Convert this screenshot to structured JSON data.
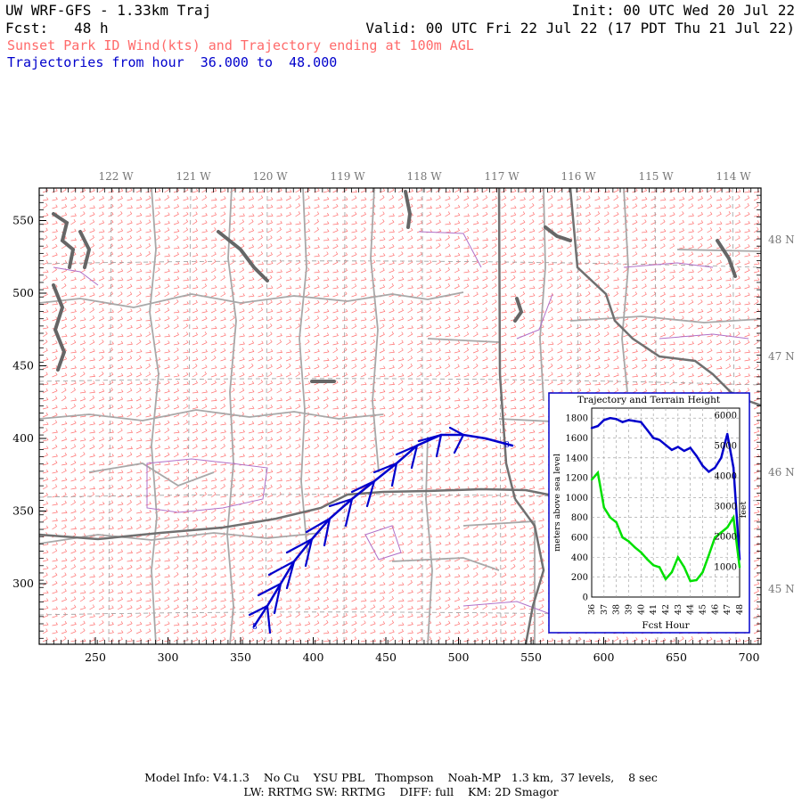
{
  "header": {
    "title": "UW WRF-GFS - 1.33km Traj",
    "init": "Init: 00 UTC Wed 20 Jul 22",
    "fcst_label": "Fcst:",
    "fcst_value": "48 h",
    "valid": "Valid: 00 UTC Fri 22 Jul 22 (17 PDT Thu 21 Jul 22)",
    "subtitle": "Sunset Park ID Wind(kts) and Trajectory ending at 100m AGL",
    "traj_prefix": "Trajectories from hour",
    "traj_start": "36.000",
    "traj_to": "to",
    "traj_end": "48.000"
  },
  "map": {
    "lon_labels": [
      "122 W",
      "121 W",
      "120 W",
      "119 W",
      "118 W",
      "117 W",
      "116 W",
      "115 W",
      "114 W"
    ],
    "lat_labels": [
      "48 N",
      "47 N",
      "46 N",
      "45 N"
    ],
    "x_ticks": [
      "250",
      "300",
      "350",
      "400",
      "450",
      "500",
      "550",
      "600",
      "650",
      "700"
    ],
    "y_ticks": [
      "300",
      "350",
      "400",
      "450",
      "500",
      "550"
    ],
    "colors": {
      "wind_barbs": "#ff6a6a",
      "trajectory": "#0000cc",
      "borders": "#a0a0a0",
      "counties": "#b060c0",
      "water": "#666666"
    }
  },
  "inset": {
    "title": "Trajectory and Terrain Height",
    "xlabel": "Fcst Hour",
    "ylabel_left": "meters above sea level",
    "ylabel_right": "feet",
    "x_ticks": [
      "36",
      "37",
      "38",
      "39",
      "40",
      "41",
      "42",
      "43",
      "44",
      "45",
      "46",
      "47",
      "48"
    ],
    "y_ticks_left": [
      "0",
      "200",
      "400",
      "600",
      "800",
      "1000",
      "1200",
      "1400",
      "1600",
      "1800"
    ],
    "y_ticks_right": [
      "1000",
      "2000",
      "3000",
      "4000",
      "5000",
      "6000"
    ]
  },
  "chart_data": {
    "type": "line",
    "title": "Trajectory and Terrain Height",
    "xlabel": "Fcst Hour",
    "ylabel": "meters above sea level",
    "xlim": [
      36,
      48
    ],
    "ylim": [
      0,
      1900
    ],
    "series": [
      {
        "color": "#0000cc",
        "x": [
          36.0,
          36.5,
          37.0,
          37.5,
          38.0,
          38.5,
          39.0,
          39.5,
          40.0,
          40.5,
          41.0,
          41.5,
          42.0,
          42.5,
          43.0,
          43.5,
          44.0,
          44.5,
          45.0,
          45.5,
          46.0,
          46.5,
          47.0,
          47.5,
          48.0
        ],
        "values": [
          1700,
          1720,
          1780,
          1800,
          1790,
          1760,
          1780,
          1770,
          1760,
          1680,
          1600,
          1580,
          1530,
          1480,
          1510,
          1470,
          1500,
          1420,
          1320,
          1260,
          1300,
          1400,
          1640,
          1300,
          380
        ]
      },
      {
        "color": "#00e000",
        "x": [
          36.0,
          36.5,
          37.0,
          37.5,
          38.0,
          38.5,
          39.0,
          39.5,
          40.0,
          40.5,
          41.0,
          41.5,
          42.0,
          42.5,
          43.0,
          43.5,
          44.0,
          44.5,
          45.0,
          45.5,
          46.0,
          46.5,
          47.0,
          47.5,
          48.0
        ],
        "values": [
          1180,
          1250,
          900,
          800,
          750,
          600,
          560,
          500,
          450,
          380,
          320,
          300,
          180,
          250,
          400,
          300,
          160,
          170,
          250,
          420,
          600,
          650,
          700,
          800,
          300
        ]
      }
    ]
  }
}
